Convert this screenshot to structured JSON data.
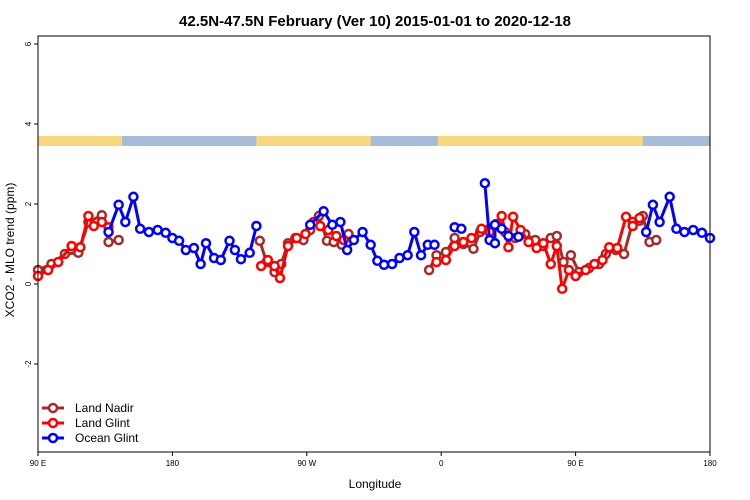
{
  "chart_data": {
    "type": "line",
    "title": "42.5N-47.5N February (Ver 10)   2015-01-01 to 2020-12-18",
    "xlabel": "Longitude",
    "ylabel": "XCO2 - MLO trend (ppm)",
    "xlim": [
      0,
      1
    ],
    "ylim": [
      -4.2,
      6.2
    ],
    "x_ticks": [
      {
        "pos": 0.0,
        "label": "90 E"
      },
      {
        "pos": 0.2,
        "label": "180"
      },
      {
        "pos": 0.4,
        "label": "90 W"
      },
      {
        "pos": 0.6,
        "label": "0"
      },
      {
        "pos": 0.8,
        "label": "90 E"
      },
      {
        "pos": 1.0,
        "label": "180"
      }
    ],
    "y_ticks": [
      -2,
      0,
      2,
      4,
      6
    ],
    "land_ocean_band": {
      "y_range": [
        3.45,
        3.7
      ],
      "land_color": "#f9d77e",
      "ocean_color": "#a7bcd9",
      "land_segments": [
        [
          0.0,
          0.125
        ],
        [
          0.325,
          0.495
        ],
        [
          0.595,
          0.725
        ],
        [
          0.725,
          0.9
        ]
      ]
    },
    "legend": {
      "position": "bottom-left"
    },
    "series": [
      {
        "name": "Land Nadir",
        "color": "#a52a2a",
        "segments": [
          [
            [
              0.0,
              0.35
            ],
            [
              0.02,
              0.5
            ],
            [
              0.04,
              0.75
            ],
            [
              0.06,
              0.78
            ],
            [
              0.075,
              1.55
            ],
            [
              0.095,
              1.72
            ],
            [
              0.105,
              1.05
            ],
            [
              0.12,
              1.1
            ]
          ],
          [
            [
              0.33,
              1.08
            ],
            [
              0.34,
              0.55
            ],
            [
              0.352,
              0.3
            ],
            [
              0.362,
              0.5
            ],
            [
              0.372,
              1.02
            ],
            [
              0.383,
              1.15
            ],
            [
              0.395,
              1.1
            ],
            [
              0.405,
              1.35
            ],
            [
              0.418,
              1.7
            ],
            [
              0.43,
              1.08
            ],
            [
              0.44,
              1.05
            ],
            [
              0.452,
              0.98
            ],
            [
              0.462,
              1.25
            ]
          ],
          [
            [
              0.582,
              0.35
            ],
            [
              0.593,
              0.72
            ],
            [
              0.607,
              0.8
            ],
            [
              0.62,
              1.15
            ],
            [
              0.633,
              1.0
            ],
            [
              0.648,
              0.88
            ],
            [
              0.658,
              1.3
            ],
            [
              0.672,
              1.38
            ],
            [
              0.685,
              1.45
            ],
            [
              0.695,
              1.3
            ],
            [
              0.71,
              1.15
            ],
            [
              0.725,
              1.25
            ],
            [
              0.74,
              1.1
            ],
            [
              0.752,
              0.95
            ],
            [
              0.763,
              1.15
            ],
            [
              0.772,
              1.2
            ],
            [
              0.782,
              0.55
            ],
            [
              0.793,
              0.72
            ],
            [
              0.805,
              0.3
            ],
            [
              0.82,
              0.4
            ],
            [
              0.835,
              0.5
            ],
            [
              0.845,
              0.75
            ],
            [
              0.86,
              0.85
            ],
            [
              0.872,
              0.75
            ],
            [
              0.885,
              1.55
            ],
            [
              0.895,
              1.58
            ],
            [
              0.9,
              1.7
            ],
            [
              0.91,
              1.05
            ],
            [
              0.92,
              1.1
            ]
          ]
        ]
      },
      {
        "name": "Land Glint",
        "color": "#ff0000",
        "segments": [
          [
            [
              0.0,
              0.2
            ],
            [
              0.015,
              0.35
            ],
            [
              0.03,
              0.55
            ],
            [
              0.05,
              0.95
            ],
            [
              0.063,
              0.92
            ],
            [
              0.075,
              1.7
            ],
            [
              0.083,
              1.45
            ],
            [
              0.095,
              1.55
            ],
            [
              0.105,
              1.42
            ]
          ],
          [
            [
              0.332,
              0.45
            ],
            [
              0.342,
              0.6
            ],
            [
              0.352,
              0.45
            ],
            [
              0.36,
              0.15
            ],
            [
              0.372,
              0.95
            ],
            [
              0.385,
              1.15
            ],
            [
              0.398,
              1.25
            ],
            [
              0.41,
              1.55
            ],
            [
              0.42,
              1.45
            ],
            [
              0.432,
              1.35
            ],
            [
              0.444,
              1.2
            ],
            [
              0.455,
              1.1
            ]
          ],
          [
            [
              0.593,
              0.55
            ],
            [
              0.607,
              0.6
            ],
            [
              0.62,
              0.95
            ],
            [
              0.633,
              1.05
            ],
            [
              0.645,
              1.15
            ],
            [
              0.66,
              1.38
            ],
            [
              0.672,
              1.3
            ],
            [
              0.682,
              1.5
            ],
            [
              0.69,
              1.7
            ],
            [
              0.7,
              0.92
            ],
            [
              0.707,
              1.68
            ],
            [
              0.718,
              1.35
            ],
            [
              0.73,
              1.05
            ],
            [
              0.742,
              0.9
            ],
            [
              0.752,
              1.02
            ],
            [
              0.763,
              0.5
            ],
            [
              0.772,
              0.95
            ],
            [
              0.78,
              -0.12
            ],
            [
              0.79,
              0.35
            ],
            [
              0.8,
              0.2
            ],
            [
              0.815,
              0.35
            ],
            [
              0.828,
              0.5
            ],
            [
              0.84,
              0.6
            ],
            [
              0.85,
              0.92
            ],
            [
              0.862,
              0.9
            ],
            [
              0.875,
              1.68
            ],
            [
              0.885,
              1.45
            ],
            [
              0.895,
              1.65
            ]
          ]
        ]
      },
      {
        "name": "Ocean Glint",
        "color": "#0000ff",
        "segments": [
          [
            [
              0.105,
              1.3
            ],
            [
              0.12,
              1.98
            ],
            [
              0.13,
              1.55
            ],
            [
              0.142,
              2.18
            ],
            [
              0.152,
              1.38
            ],
            [
              0.165,
              1.3
            ],
            [
              0.178,
              1.35
            ],
            [
              0.19,
              1.28
            ],
            [
              0.2,
              1.15
            ],
            [
              0.21,
              1.08
            ],
            [
              0.22,
              0.85
            ],
            [
              0.232,
              0.9
            ],
            [
              0.242,
              0.5
            ],
            [
              0.25,
              1.02
            ],
            [
              0.262,
              0.65
            ],
            [
              0.272,
              0.6
            ],
            [
              0.285,
              1.08
            ],
            [
              0.293,
              0.85
            ],
            [
              0.302,
              0.62
            ],
            [
              0.315,
              0.78
            ],
            [
              0.325,
              1.45
            ]
          ],
          [
            [
              0.405,
              1.48
            ],
            [
              0.425,
              1.82
            ],
            [
              0.438,
              1.48
            ],
            [
              0.45,
              1.55
            ],
            [
              0.46,
              0.85
            ],
            [
              0.47,
              1.1
            ],
            [
              0.483,
              1.3
            ],
            [
              0.495,
              0.98
            ],
            [
              0.505,
              0.58
            ],
            [
              0.515,
              0.48
            ],
            [
              0.527,
              0.5
            ],
            [
              0.538,
              0.65
            ],
            [
              0.55,
              0.72
            ],
            [
              0.56,
              1.3
            ],
            [
              0.57,
              0.72
            ],
            [
              0.58,
              0.98
            ],
            [
              0.59,
              0.98
            ]
          ],
          [
            [
              0.62,
              1.42
            ],
            [
              0.63,
              1.38
            ]
          ],
          [
            [
              0.665,
              2.52
            ],
            [
              0.672,
              1.1
            ],
            [
              0.68,
              1.02
            ],
            [
              0.68,
              1.48
            ],
            [
              0.69,
              1.38
            ],
            [
              0.7,
              1.2
            ],
            [
              0.715,
              1.18
            ]
          ],
          [
            [
              0.905,
              1.3
            ],
            [
              0.915,
              1.98
            ],
            [
              0.925,
              1.55
            ],
            [
              0.94,
              2.18
            ],
            [
              0.95,
              1.38
            ],
            [
              0.962,
              1.3
            ],
            [
              0.975,
              1.35
            ],
            [
              0.988,
              1.28
            ],
            [
              1.0,
              1.15
            ]
          ]
        ]
      }
    ]
  }
}
